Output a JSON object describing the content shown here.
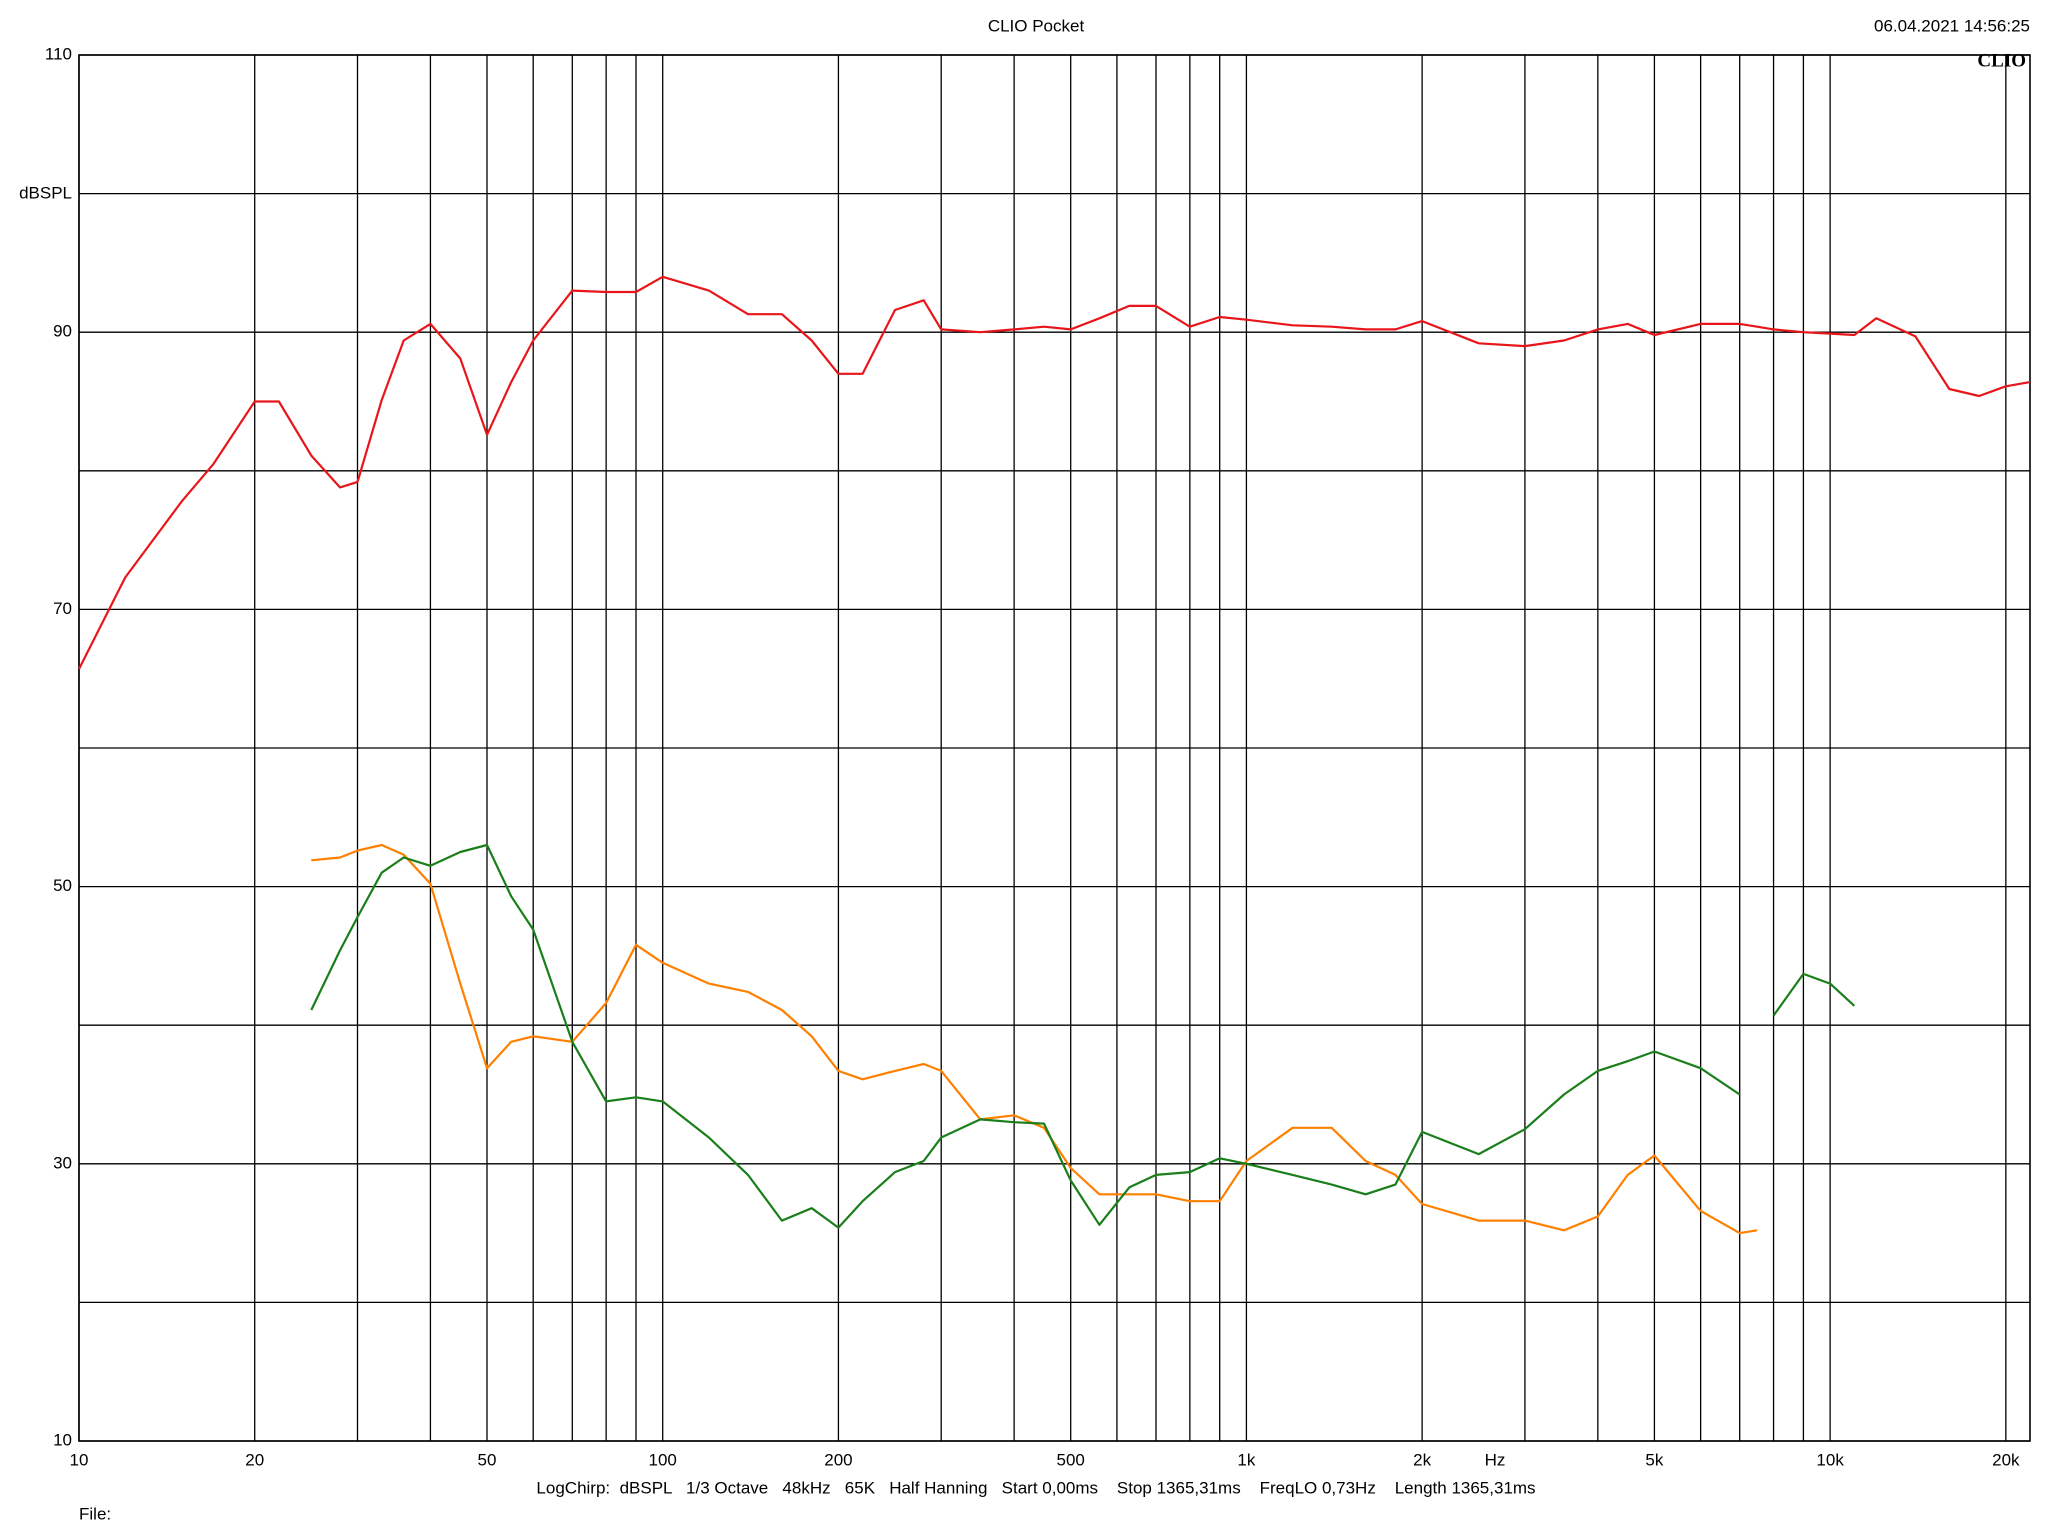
{
  "chart_data": {
    "type": "line",
    "title": "CLIO Pocket",
    "timestamp": "06.04.2021 14:56:25",
    "logo": "CLIO",
    "y_label": "dBSPL",
    "x_label": "Hz",
    "footer": "LogChirp:  dBSPL   1/3 Octave   48kHz   65K   Half Hanning   Start 0,00ms    Stop 1365,31ms    FreqLO 0,73Hz    Length 1365,31ms",
    "file_label": "File:",
    "log_x": true,
    "grid": true,
    "xlim": [
      10,
      22000
    ],
    "ylim": [
      10,
      110
    ],
    "xticks": [
      10,
      20,
      50,
      100,
      200,
      500,
      {
        "value": 1000,
        "label": "1k"
      },
      {
        "value": 2000,
        "label": "2k"
      },
      {
        "value": 5000,
        "label": "5k"
      },
      {
        "value": 10000,
        "label": "10k"
      },
      {
        "value": 20000,
        "label": "20k"
      }
    ],
    "xminor": [
      30,
      40,
      60,
      70,
      80,
      90,
      300,
      400,
      600,
      700,
      800,
      900,
      3000,
      4000,
      6000,
      7000,
      8000,
      9000
    ],
    "yticks": [
      10,
      30,
      50,
      70,
      90,
      110
    ],
    "yminor": [
      20,
      40,
      60,
      80,
      100
    ],
    "x": [
      10,
      12,
      15,
      17,
      20,
      22,
      25,
      28,
      30,
      33,
      36,
      40,
      45,
      50,
      55,
      60,
      70,
      80,
      90,
      100,
      120,
      140,
      160,
      180,
      200,
      220,
      250,
      280,
      300,
      350,
      400,
      450,
      500,
      560,
      630,
      700,
      800,
      900,
      1000,
      1200,
      1400,
      1600,
      1800,
      2000,
      2500,
      3000,
      3500,
      4000,
      4500,
      5000,
      6000,
      7000,
      7500,
      8000,
      9000,
      10000,
      11000,
      12000,
      14000,
      16000,
      18000,
      20000,
      22000
    ],
    "series": [
      {
        "name": "red",
        "color": "#e8161a",
        "values": [
          65.7,
          72.3,
          77.8,
          80.5,
          85.0,
          85.0,
          81.1,
          78.8,
          79.2,
          85.1,
          89.4,
          90.6,
          88.1,
          82.6,
          86.4,
          89.4,
          93.0,
          92.9,
          92.9,
          94.0,
          93.0,
          91.3,
          91.3,
          89.4,
          87.0,
          87.0,
          91.6,
          92.3,
          90.2,
          90.0,
          90.2,
          90.4,
          90.2,
          91.0,
          91.9,
          91.9,
          90.4,
          91.1,
          90.9,
          90.5,
          90.4,
          90.2,
          90.2,
          90.8,
          89.2,
          89.0,
          89.4,
          90.2,
          90.6,
          89.8,
          90.6,
          90.6,
          90.4,
          90.2,
          90.0,
          89.9,
          89.8,
          91.0,
          89.7,
          85.9,
          85.4,
          86.1,
          86.4
        ]
      },
      {
        "name": "orange",
        "color": "#ff8000",
        "values": [
          null,
          null,
          null,
          null,
          null,
          null,
          51.9,
          52.1,
          52.6,
          53.0,
          52.3,
          50.2,
          43.0,
          36.9,
          38.8,
          39.2,
          38.8,
          41.6,
          45.8,
          44.5,
          43.0,
          42.4,
          41.1,
          39.2,
          36.7,
          36.1,
          36.7,
          37.2,
          36.7,
          33.2,
          33.5,
          32.6,
          29.7,
          27.8,
          27.8,
          27.8,
          27.3,
          27.3,
          30.2,
          32.6,
          32.6,
          30.2,
          29.2,
          27.1,
          25.9,
          25.9,
          25.2,
          26.2,
          29.2,
          30.6,
          26.6,
          25.0,
          25.2,
          null,
          null,
          null,
          null,
          null,
          null,
          null,
          null,
          null,
          null
        ]
      },
      {
        "name": "green",
        "color": "#1a7f1a",
        "values": [
          null,
          null,
          null,
          null,
          null,
          null,
          41.1,
          45.4,
          47.8,
          51.0,
          52.1,
          51.5,
          52.5,
          53.0,
          49.3,
          46.9,
          38.8,
          34.5,
          34.8,
          34.5,
          31.9,
          29.2,
          25.9,
          26.8,
          25.4,
          27.3,
          29.4,
          30.2,
          31.9,
          33.2,
          33.0,
          32.9,
          28.8,
          25.6,
          28.3,
          29.2,
          29.4,
          30.4,
          30.0,
          29.2,
          28.5,
          27.8,
          28.5,
          32.3,
          30.7,
          32.5,
          35.0,
          36.7,
          37.4,
          38.1,
          36.9,
          35.0,
          null,
          40.7,
          43.7,
          43.0,
          41.4,
          null,
          null,
          null,
          null,
          null,
          null
        ]
      }
    ]
  }
}
